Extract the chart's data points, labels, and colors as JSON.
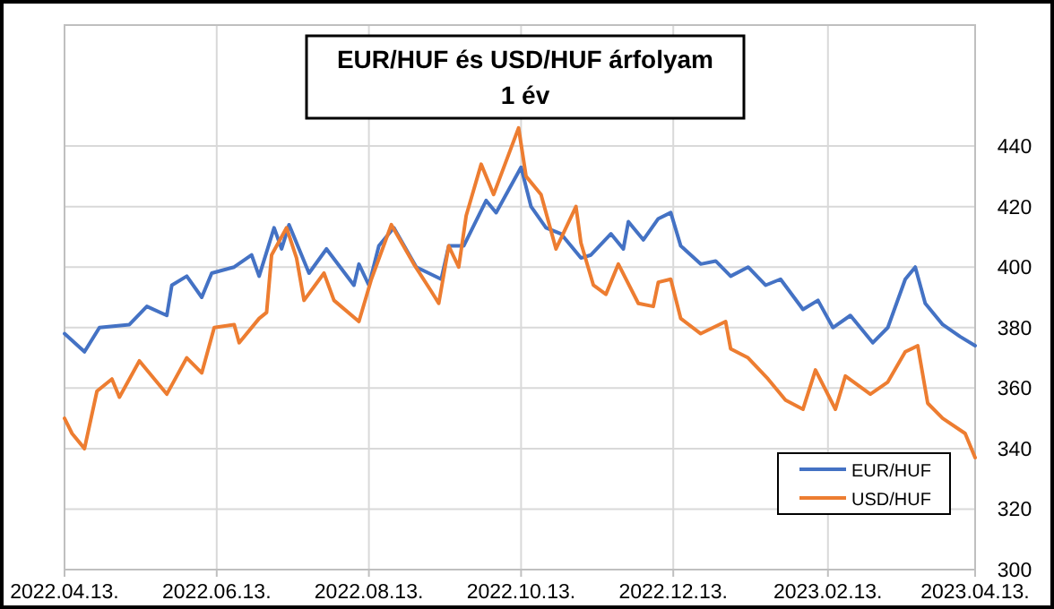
{
  "chart_data": {
    "type": "line",
    "title": "EUR/HUF és USD/HUF árfolyam\n1 év",
    "xlim": [
      "2022-04-13",
      "2023-04-13"
    ],
    "xticks": [
      {
        "value": "2022-04-13",
        "label": "2022.04.13."
      },
      {
        "value": "2022-06-13",
        "label": "2022.06.13."
      },
      {
        "value": "2022-08-13",
        "label": "2022.08.13."
      },
      {
        "value": "2022-10-13",
        "label": "2022.10.13."
      },
      {
        "value": "2022-12-13",
        "label": "2022.12.13."
      },
      {
        "value": "2023-02-13",
        "label": "2023.02.13."
      },
      {
        "value": "2023-04-13",
        "label": "2023.04.13."
      }
    ],
    "ylim": [
      300,
      480
    ],
    "yticks": [
      300,
      320,
      340,
      360,
      380,
      400,
      420,
      440
    ],
    "grid": true,
    "legend": "bottom right",
    "marker": "none",
    "line_style": "solid",
    "series": [
      {
        "name": "EUR/HUF",
        "color": "#4472c4",
        "x": [
          "2022-04-13",
          "2022-04-21",
          "2022-04-27",
          "2022-05-09",
          "2022-05-16",
          "2022-05-24",
          "2022-05-26",
          "2022-06-01",
          "2022-06-07",
          "2022-06-11",
          "2022-06-20",
          "2022-06-27",
          "2022-06-30",
          "2022-07-06",
          "2022-07-09",
          "2022-07-12",
          "2022-07-20",
          "2022-07-27",
          "2022-08-07",
          "2022-08-09",
          "2022-08-13",
          "2022-08-17",
          "2022-08-23",
          "2022-09-01",
          "2022-09-11",
          "2022-09-14",
          "2022-09-20",
          "2022-09-29",
          "2022-10-03",
          "2022-10-13",
          "2022-10-17",
          "2022-10-23",
          "2022-10-29",
          "2022-11-06",
          "2022-11-10",
          "2022-11-18",
          "2022-11-23",
          "2022-11-25",
          "2022-12-01",
          "2022-12-07",
          "2022-12-12",
          "2022-12-16",
          "2022-12-24",
          "2022-12-30",
          "2023-01-05",
          "2023-01-12",
          "2023-01-19",
          "2023-01-25",
          "2023-02-03",
          "2023-02-09",
          "2023-02-15",
          "2023-02-22",
          "2023-03-03",
          "2023-03-09",
          "2023-03-16",
          "2023-03-20",
          "2023-03-24",
          "2023-03-31",
          "2023-04-07",
          "2023-04-13"
        ],
        "values": [
          378,
          372,
          380,
          381,
          387,
          384,
          394,
          397,
          390,
          398,
          400,
          404,
          397,
          413,
          406,
          414,
          398,
          406,
          394,
          401,
          394,
          407,
          413,
          400,
          396,
          407,
          407,
          422,
          418,
          433,
          420,
          413,
          411,
          403,
          404,
          411,
          406,
          415,
          409,
          416,
          418,
          407,
          401,
          402,
          397,
          400,
          394,
          396,
          386,
          389,
          380,
          384,
          375,
          380,
          396,
          400,
          388,
          381,
          377,
          374
        ]
      },
      {
        "name": "USD/HUF",
        "color": "#ed7d31",
        "x": [
          "2022-04-13",
          "2022-04-16",
          "2022-04-21",
          "2022-04-26",
          "2022-05-02",
          "2022-05-05",
          "2022-05-13",
          "2022-05-24",
          "2022-06-01",
          "2022-06-07",
          "2022-06-12",
          "2022-06-20",
          "2022-06-22",
          "2022-06-30",
          "2022-07-03",
          "2022-07-05",
          "2022-07-11",
          "2022-07-15",
          "2022-07-18",
          "2022-07-26",
          "2022-07-30",
          "2022-08-09",
          "2022-08-14",
          "2022-08-22",
          "2022-08-31",
          "2022-09-07",
          "2022-09-10",
          "2022-09-14",
          "2022-09-18",
          "2022-09-21",
          "2022-09-27",
          "2022-10-02",
          "2022-10-12",
          "2022-10-15",
          "2022-10-21",
          "2022-10-27",
          "2022-11-04",
          "2022-11-06",
          "2022-11-11",
          "2022-11-16",
          "2022-11-21",
          "2022-11-29",
          "2022-12-05",
          "2022-12-07",
          "2022-12-12",
          "2022-12-16",
          "2022-12-24",
          "2023-01-03",
          "2023-01-05",
          "2023-01-12",
          "2023-01-20",
          "2023-01-27",
          "2023-02-03",
          "2023-02-08",
          "2023-02-16",
          "2023-02-20",
          "2023-03-02",
          "2023-03-09",
          "2023-03-16",
          "2023-03-21",
          "2023-03-25",
          "2023-03-31",
          "2023-04-09",
          "2023-04-13"
        ],
        "values": [
          350,
          345,
          340,
          359,
          363,
          357,
          369,
          358,
          370,
          365,
          380,
          381,
          375,
          383,
          385,
          404,
          413,
          403,
          389,
          398,
          389,
          382,
          396,
          414,
          401,
          392,
          388,
          407,
          400,
          417,
          434,
          424,
          446,
          430,
          424,
          406,
          420,
          408,
          394,
          391,
          401,
          388,
          387,
          395,
          396,
          383,
          378,
          382,
          373,
          370,
          363,
          356,
          353,
          366,
          353,
          364,
          358,
          362,
          372,
          374,
          355,
          350,
          345,
          337
        ]
      }
    ]
  }
}
